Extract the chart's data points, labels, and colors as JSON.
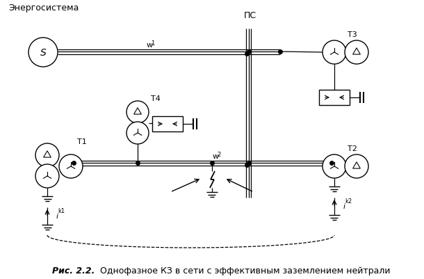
{
  "title_bold": "Рис. 2.2.",
  "title_rest": " Однофазное КЗ в сети с эффективным заземлением нейтрали",
  "label_energo": "Энергосистема",
  "label_ps": "ПС",
  "label_S": "S",
  "label_T1": "T1",
  "label_T2": "T2",
  "label_T3": "T3",
  "label_T4": "T4",
  "label_w1": "w",
  "label_w2": "w",
  "label_ik1": "i",
  "label_ik2": "i",
  "bg_color": "#ffffff",
  "fig_width": 6.1,
  "fig_height": 4.02,
  "dpi": 100
}
